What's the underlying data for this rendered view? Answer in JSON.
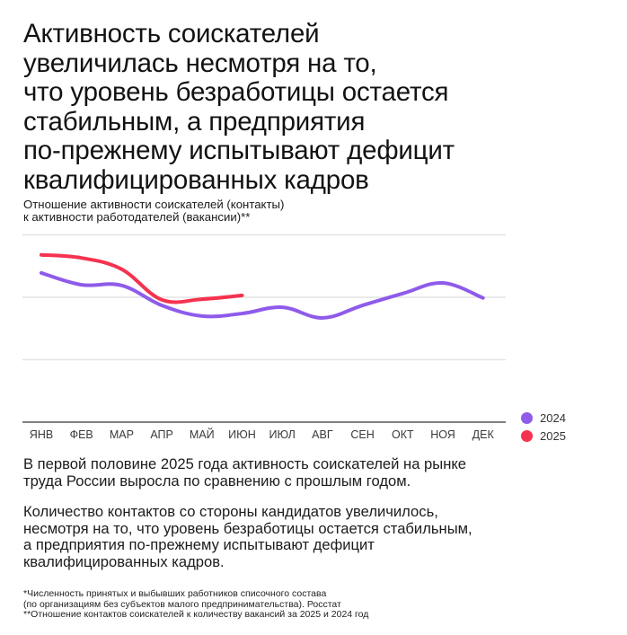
{
  "title": {
    "lines": [
      "Активность соискателей",
      "увеличилась несмотря на то,",
      "что уровень безработицы остается",
      "стабильным, а предприятия",
      "по-прежнему испытывают дефицит",
      "квалифицированных кадров"
    ]
  },
  "subtitle": {
    "lines": [
      "Отношение активности соискателей (контакты)",
      "к активности работодателей (вакансии)**"
    ]
  },
  "legend": [
    {
      "label": "2024",
      "color": "#8E5BEA"
    },
    {
      "label": "2025",
      "color": "#F5334F"
    }
  ],
  "colors": {
    "series_2024": "#8E5BEA",
    "series_2025": "#F5334F",
    "grid": "#E3E3E3",
    "axis": "#555555"
  },
  "paragraphs": {
    "p1": [
      "В первой половине 2025 года активность соискателей на рынке",
      "труда России выросла по сравнению с прошлым годом."
    ],
    "p2": [
      "Количество контактов со стороны кандидатов увеличилось,",
      "несмотря на то, что уровень безработицы остается стабильным,",
      "а предприятия по-прежнему испытывают дефицит",
      "квалифицированных кадров."
    ]
  },
  "footnotes": [
    "*Численность принятых и выбывших работников списочного состава",
    "(по организациям без субъектов малого предпринимательства). Росстат",
    "**Отношение контактов соискателей к количеству вакансий за 2025 и 2024 год"
  ],
  "chart_data": {
    "type": "line",
    "title": "Отношение активности соискателей (контакты) к активности работодателей (вакансии)**",
    "xlabel": "",
    "ylabel": "",
    "categories": [
      "ЯНВ",
      "ФЕВ",
      "МАР",
      "АПР",
      "МАЙ",
      "ИЮН",
      "ИЮЛ",
      "АВГ",
      "СЕН",
      "ОКТ",
      "НОЯ",
      "ДЕК"
    ],
    "series": [
      {
        "name": "2024",
        "color": "#8E5BEA",
        "values": [
          2.39,
          2.2,
          2.19,
          1.87,
          1.7,
          1.74,
          1.84,
          1.67,
          1.87,
          2.06,
          2.23,
          1.99
        ]
      },
      {
        "name": "2025",
        "color": "#F5334F",
        "values": [
          2.68,
          2.63,
          2.45,
          1.96,
          1.97,
          2.03,
          null,
          null,
          null,
          null,
          null,
          null
        ]
      }
    ],
    "ylim": [
      0,
      3
    ],
    "y_ticks_labeled": false,
    "y_units_note": "relative scale: 0 = baseline axis, 1/2/3 = horizontal gridlines (no numeric tick labels shown)",
    "grid": true,
    "legend_position": "right-bottom"
  }
}
